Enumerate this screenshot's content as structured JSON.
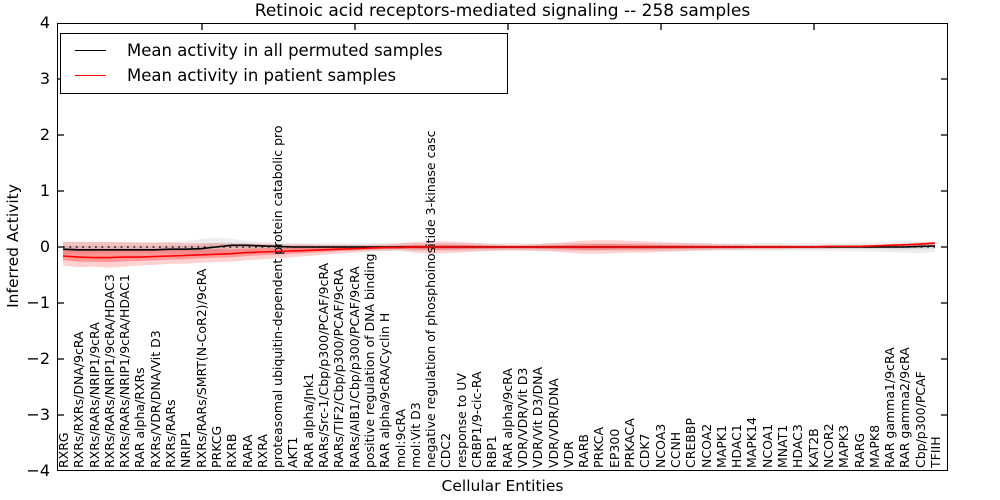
{
  "chart_data": {
    "type": "line",
    "title": "Retinoic acid receptors-mediated signaling -- 258 samples",
    "xlabel": "Cellular Entities",
    "ylabel": "Inferred Activity",
    "ylim": [
      -4,
      4
    ],
    "ytick_labels": [
      "4",
      "3",
      "2",
      "1",
      "0",
      "−1",
      "−2",
      "−3",
      "−4"
    ],
    "grid": false,
    "legend_position": "upper left",
    "zero_line_style": "dotted",
    "categories": [
      "RXRG",
      "RXRs/RXRs/DNA/9cRA",
      "RXRs/RARs/NRIP1/9cRA",
      "RXRs/RARs/NRIP1/9cRA/HDAC3",
      "RXRs/RARs/NRIP1/9cRA/HDAC1",
      "RAR alpha/RXRs",
      "RXRs/VDR/DNA/Vit D3",
      "RXRs/RARs",
      "NRIP1",
      "RXRs/RARs/SMRT(N-CoR2)/9cRA",
      "PRKCG",
      "RXRB",
      "RARA",
      "RXRA",
      "proteasomal ubiquitin-dependent protein catabolic pro",
      "AKT1",
      "RAR alpha/Jnk1",
      "RARs/Src-1/Cbp/p300/PCAF/9cRA",
      "RARs/TIF2/Cbp/p300/PCAF/9cRA",
      "RARs/AIB1/Cbp/p300/PCAF/9cRA",
      "positive regulation of DNA binding",
      "RAR alpha/9cRA/Cyclin H",
      "mol:9cRA",
      "mol:Vit D3",
      "negative regulation of phosphoinositide 3-kinase casc",
      "CDC2",
      "response to UV",
      "CRBP1/9-cic-RA",
      "RBP1",
      "RAR alpha/9cRA",
      "VDR/VDR/Vit D3",
      "VDR/Vit D3/DNA",
      "VDR/VDR/DNA",
      "VDR",
      "RARB",
      "PRKCA",
      "EP300",
      "PRKACA",
      "CDK7",
      "NCOA3",
      "CCNH",
      "CREBBP",
      "NCOA2",
      "MAPK1",
      "HDAC1",
      "MAPK14",
      "NCOA1",
      "MNAT1",
      "HDAC3",
      "KAT2B",
      "NCOR2",
      "MAPK3",
      "RARG",
      "MAPK8",
      "RAR gamma1/9cRA",
      "RAR gamma2/9cRA",
      "Cbp/p300/PCAF",
      "TFIIH"
    ],
    "series": [
      {
        "name": "Mean activity in all permuted samples",
        "color": "#000000",
        "band_color": "rgba(0,0,0,0.07)",
        "band_core_color": "rgba(0,0,0,0.07)",
        "mean": [
          -0.04,
          -0.05,
          -0.05,
          -0.05,
          -0.05,
          -0.05,
          -0.05,
          -0.04,
          -0.04,
          -0.03,
          0.0,
          0.03,
          0.03,
          0.02,
          0.01,
          0.0,
          0.0,
          0.0,
          0.0,
          0.0,
          0.0,
          0.0,
          0.0,
          0.0,
          0.0,
          0.0,
          0.0,
          0.0,
          0.0,
          0.0,
          0.0,
          0.0,
          0.0,
          0.0,
          0.0,
          0.0,
          0.0,
          0.0,
          0.0,
          0.0,
          0.0,
          0.0,
          0.0,
          0.0,
          0.0,
          0.0,
          0.0,
          0.0,
          0.0,
          0.0,
          0.0,
          0.0,
          0.0,
          0.0,
          0.0,
          0.0,
          0.01,
          0.02
        ],
        "upper": [
          0.1,
          0.1,
          0.09,
          0.09,
          0.08,
          0.08,
          0.08,
          0.09,
          0.1,
          0.14,
          0.17,
          0.15,
          0.11,
          0.09,
          0.08,
          0.07,
          0.07,
          0.07,
          0.07,
          0.07,
          0.07,
          0.07,
          0.07,
          0.07,
          0.07,
          0.07,
          0.07,
          0.07,
          0.07,
          0.07,
          0.07,
          0.07,
          0.07,
          0.07,
          0.07,
          0.07,
          0.07,
          0.07,
          0.07,
          0.07,
          0.07,
          0.07,
          0.07,
          0.07,
          0.07,
          0.07,
          0.07,
          0.07,
          0.07,
          0.07,
          0.07,
          0.07,
          0.08,
          0.08,
          0.09,
          0.1,
          0.1,
          0.09
        ],
        "lower": [
          -0.13,
          -0.13,
          -0.12,
          -0.12,
          -0.11,
          -0.11,
          -0.11,
          -0.12,
          -0.12,
          -0.13,
          -0.13,
          -0.11,
          -0.09,
          -0.08,
          -0.08,
          -0.07,
          -0.07,
          -0.07,
          -0.07,
          -0.07,
          -0.07,
          -0.07,
          -0.07,
          -0.07,
          -0.07,
          -0.07,
          -0.07,
          -0.07,
          -0.07,
          -0.07,
          -0.07,
          -0.07,
          -0.07,
          -0.07,
          -0.07,
          -0.07,
          -0.07,
          -0.07,
          -0.07,
          -0.07,
          -0.07,
          -0.07,
          -0.07,
          -0.07,
          -0.07,
          -0.07,
          -0.07,
          -0.07,
          -0.07,
          -0.07,
          -0.07,
          -0.07,
          -0.08,
          -0.08,
          -0.09,
          -0.1,
          -0.11,
          -0.09
        ]
      },
      {
        "name": "Mean activity in patient samples",
        "color": "#ff0000",
        "band_color": "rgba(255,0,0,0.18)",
        "band_core_color": "rgba(255,0,0,0.28)",
        "mean": [
          -0.16,
          -0.18,
          -0.19,
          -0.19,
          -0.18,
          -0.18,
          -0.17,
          -0.16,
          -0.15,
          -0.14,
          -0.13,
          -0.12,
          -0.1,
          -0.09,
          -0.08,
          -0.07,
          -0.06,
          -0.05,
          -0.04,
          -0.03,
          -0.02,
          -0.01,
          -0.01,
          0.0,
          0.0,
          0.0,
          0.0,
          0.0,
          0.0,
          0.0,
          0.0,
          0.0,
          0.0,
          0.0,
          0.0,
          0.0,
          0.0,
          0.0,
          0.0,
          0.0,
          0.0,
          0.0,
          0.0,
          0.0,
          0.0,
          0.0,
          0.0,
          0.0,
          0.0,
          0.0,
          0.01,
          0.01,
          0.01,
          0.02,
          0.03,
          0.04,
          0.05,
          0.07
        ],
        "upper": [
          0.09,
          0.09,
          0.09,
          0.09,
          0.09,
          0.08,
          0.08,
          0.08,
          0.07,
          0.07,
          0.07,
          0.06,
          0.06,
          0.06,
          0.05,
          0.05,
          0.05,
          0.04,
          0.04,
          0.04,
          0.04,
          0.05,
          0.07,
          0.09,
          0.1,
          0.1,
          0.09,
          0.07,
          0.05,
          0.04,
          0.04,
          0.05,
          0.07,
          0.09,
          0.11,
          0.12,
          0.12,
          0.11,
          0.1,
          0.09,
          0.08,
          0.07,
          0.06,
          0.05,
          0.05,
          0.04,
          0.04,
          0.04,
          0.03,
          0.03,
          0.03,
          0.03,
          0.03,
          0.04,
          0.05,
          0.06,
          0.08,
          0.09
        ],
        "lower": [
          -0.33,
          -0.36,
          -0.35,
          -0.37,
          -0.35,
          -0.33,
          -0.32,
          -0.3,
          -0.3,
          -0.28,
          -0.27,
          -0.26,
          -0.24,
          -0.22,
          -0.2,
          -0.18,
          -0.16,
          -0.14,
          -0.12,
          -0.1,
          -0.08,
          -0.07,
          -0.06,
          -0.1,
          -0.12,
          -0.11,
          -0.1,
          -0.08,
          -0.07,
          -0.06,
          -0.06,
          -0.07,
          -0.08,
          -0.1,
          -0.12,
          -0.12,
          -0.11,
          -0.1,
          -0.1,
          -0.09,
          -0.08,
          -0.07,
          -0.06,
          -0.05,
          -0.05,
          -0.04,
          -0.04,
          -0.04,
          -0.03,
          -0.03,
          -0.03,
          -0.02,
          -0.02,
          -0.02,
          -0.01,
          0.0,
          0.02,
          0.04
        ]
      }
    ]
  }
}
